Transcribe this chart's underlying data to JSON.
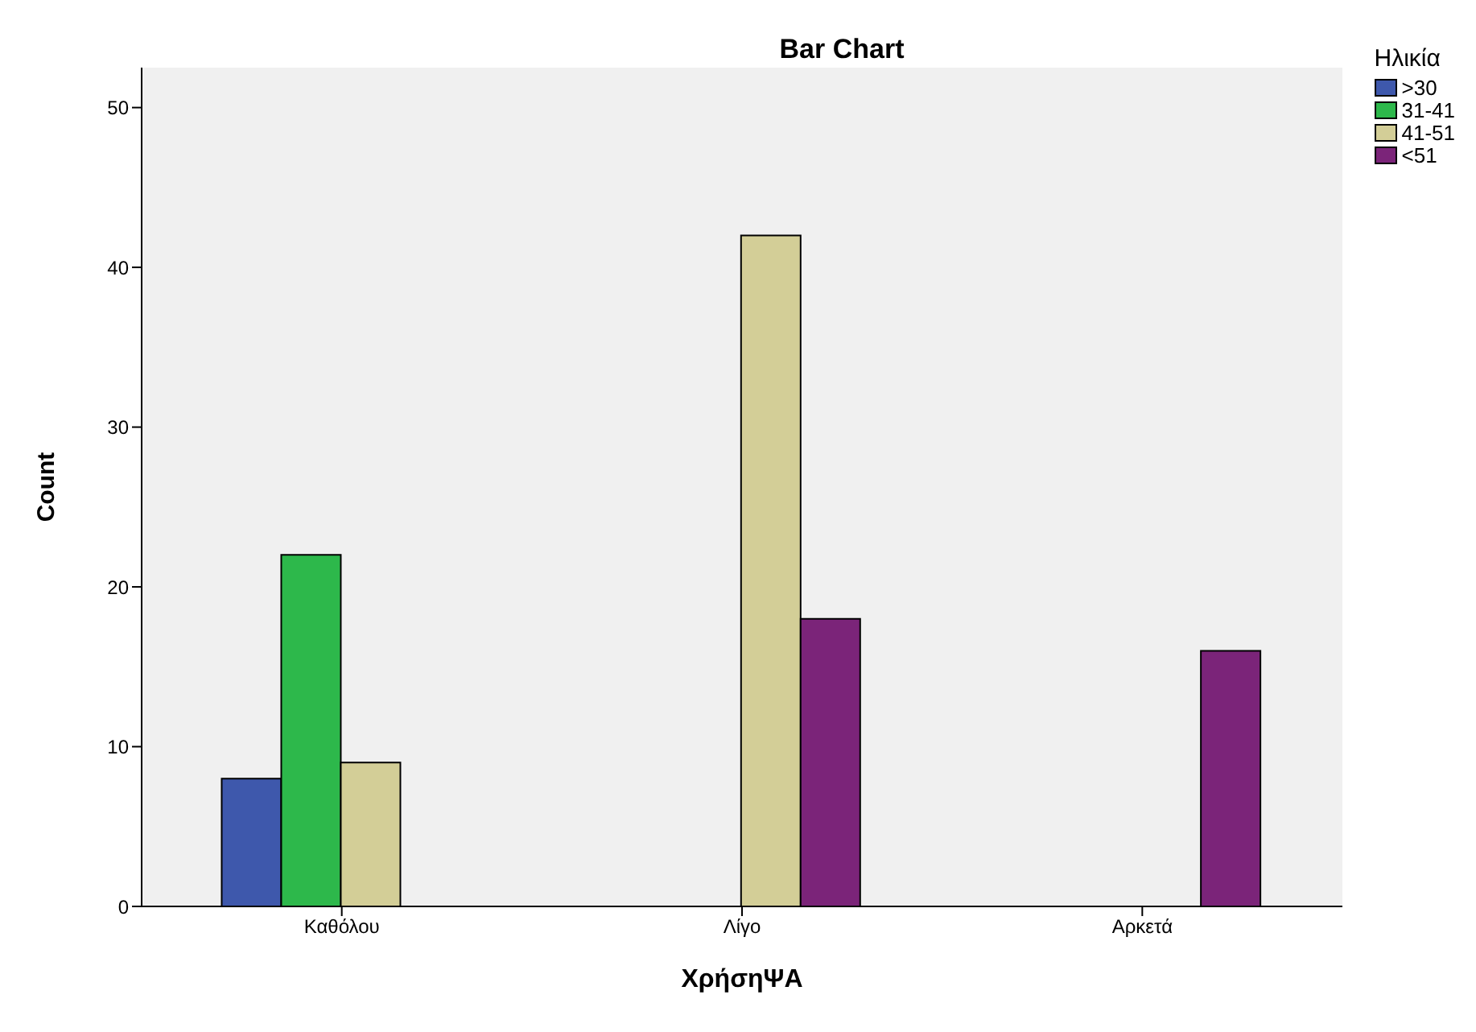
{
  "chart_data": {
    "type": "bar",
    "title": "Bar Chart",
    "xlabel": "ΧρήσηΨΑ",
    "ylabel": "Count",
    "legend_title": "Ηλικία",
    "legend": "top right",
    "categories": [
      "Καθόλου",
      "Λίγο",
      "Αρκετά"
    ],
    "series": [
      {
        "name": ">30",
        "color": "#3e58ac",
        "values": [
          8,
          null,
          null
        ]
      },
      {
        "name": "31-41",
        "color": "#2db84b",
        "values": [
          22,
          null,
          null
        ]
      },
      {
        "name": "41-51",
        "color": "#d3ce97",
        "values": [
          9,
          42,
          null
        ]
      },
      {
        "name": "<51",
        "color": "#7b2479",
        "values": [
          null,
          18,
          16
        ]
      }
    ],
    "ylim": [
      0,
      52.5
    ],
    "yticks": [
      0,
      10,
      20,
      30,
      40,
      50
    ],
    "grid": false
  }
}
